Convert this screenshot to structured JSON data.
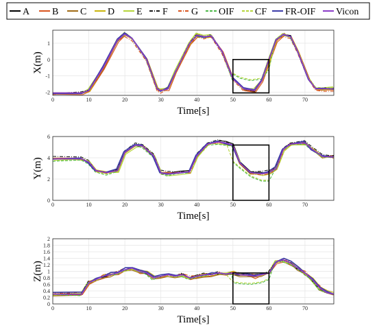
{
  "legend": {
    "position": "top",
    "items": [
      {
        "name": "A",
        "color": "#000000",
        "dash": "solid"
      },
      {
        "name": "B",
        "color": "#d9541e",
        "dash": "solid"
      },
      {
        "name": "C",
        "color": "#a06a14",
        "dash": "solid"
      },
      {
        "name": "D",
        "color": "#c9b40a",
        "dash": "solid"
      },
      {
        "name": "E",
        "color": "#b5d43a",
        "dash": "solid"
      },
      {
        "name": "F",
        "color": "#1a1a1a",
        "dash": "dashdot"
      },
      {
        "name": "G",
        "color": "#d9541e",
        "dash": "dashdot"
      },
      {
        "name": "OIF",
        "color": "#4db848",
        "dash": "dash"
      },
      {
        "name": "CF",
        "color": "#b5d43a",
        "dash": "dash"
      },
      {
        "name": "FR-OIF",
        "color": "#3c3ca8",
        "dash": "solid"
      },
      {
        "name": "Vicon",
        "color": "#8a3cc8",
        "dash": "solid"
      }
    ]
  },
  "chart_data": [
    {
      "type": "line",
      "id": "x",
      "xlabel": "Time[s]",
      "ylabel": "X(m)",
      "xlim": [
        0,
        78
      ],
      "ylim": [
        -2.2,
        1.8
      ],
      "xticks": [
        0,
        10,
        20,
        30,
        40,
        50,
        60,
        70
      ],
      "yticks": [
        -2,
        -1,
        0,
        1
      ],
      "grid": true,
      "highlight_box": {
        "x": [
          50,
          60
        ],
        "y": [
          -2.05,
          0
        ]
      },
      "series_reference": {
        "name": "Vicon",
        "x": [
          0,
          8,
          10,
          14,
          18,
          20,
          22,
          26,
          29,
          30,
          32,
          34,
          38,
          40,
          42,
          44,
          47,
          50,
          53,
          56,
          58,
          60,
          62,
          64,
          66,
          68,
          71,
          73,
          75,
          78
        ],
        "y": [
          -2.05,
          -2.05,
          -1.9,
          -0.5,
          1.2,
          1.55,
          1.3,
          0.0,
          -1.8,
          -1.9,
          -1.8,
          -0.8,
          1.0,
          1.5,
          1.4,
          1.45,
          0.5,
          -1.2,
          -1.8,
          -1.9,
          -1.3,
          0.0,
          1.2,
          1.55,
          1.4,
          0.5,
          -1.2,
          -1.8,
          -1.8,
          -1.8
        ]
      },
      "deviation_segment": {
        "names": [
          "OIF",
          "CF"
        ],
        "x": [
          50,
          52,
          55,
          58,
          60
        ],
        "y": [
          -0.9,
          -1.15,
          -1.3,
          -1.2,
          -0.6
        ]
      }
    },
    {
      "type": "line",
      "id": "y",
      "xlabel": "Time[s]",
      "ylabel": "Y(m)",
      "xlim": [
        0,
        78
      ],
      "ylim": [
        0,
        6
      ],
      "xticks": [
        0,
        10,
        20,
        30,
        40,
        50,
        60,
        70
      ],
      "yticks": [
        0,
        2,
        4,
        6
      ],
      "grid": true,
      "highlight_box": {
        "x": [
          50,
          60
        ],
        "y": [
          0,
          5.2
        ]
      },
      "series_reference": {
        "name": "Vicon",
        "x": [
          0,
          8,
          10,
          12,
          15,
          18,
          20,
          23,
          25,
          28,
          30,
          32,
          35,
          38,
          40,
          43,
          46,
          48,
          50,
          52,
          55,
          58,
          60,
          62,
          64,
          66,
          70,
          72,
          75,
          78
        ],
        "y": [
          3.9,
          3.9,
          3.6,
          2.8,
          2.6,
          2.8,
          4.5,
          5.2,
          5.1,
          4.2,
          2.6,
          2.5,
          2.6,
          2.7,
          4.2,
          5.3,
          5.5,
          5.4,
          5.2,
          3.5,
          2.6,
          2.5,
          2.6,
          3.0,
          4.8,
          5.3,
          5.4,
          4.8,
          4.1,
          4.1
        ]
      },
      "deviation_segment": {
        "names": [
          "OIF",
          "CF"
        ],
        "x": [
          50,
          52,
          55,
          58,
          60
        ],
        "y": [
          3.6,
          3.0,
          2.2,
          1.8,
          1.8
        ]
      }
    },
    {
      "type": "line",
      "id": "z",
      "xlabel": "Time[s]",
      "ylabel": "Z(m)",
      "xlim": [
        0,
        78
      ],
      "ylim": [
        0,
        2
      ],
      "xticks": [
        0,
        10,
        20,
        30,
        40,
        50,
        60,
        70
      ],
      "yticks": [
        0,
        0.2,
        0.4,
        0.6,
        0.8,
        1,
        1.2,
        1.4,
        1.6,
        1.8,
        2
      ],
      "grid": true,
      "highlight_box": {
        "x": [
          50,
          60
        ],
        "y": [
          0,
          0.95
        ]
      },
      "series_reference": {
        "name": "Vicon",
        "x": [
          0,
          8,
          10,
          12,
          14,
          16,
          18,
          20,
          22,
          24,
          26,
          28,
          30,
          32,
          34,
          36,
          38,
          40,
          42,
          44,
          46,
          48,
          50,
          52,
          54,
          56,
          58,
          60,
          62,
          64,
          66,
          68,
          70,
          72,
          74,
          76,
          78
        ],
        "y": [
          0.3,
          0.3,
          0.65,
          0.75,
          0.85,
          0.9,
          0.95,
          1.05,
          1.1,
          1.0,
          0.95,
          0.8,
          0.85,
          0.9,
          0.85,
          0.9,
          0.8,
          0.85,
          0.9,
          0.9,
          0.95,
          0.92,
          0.95,
          0.9,
          0.88,
          0.85,
          0.9,
          0.95,
          1.3,
          1.35,
          1.25,
          1.1,
          0.95,
          0.75,
          0.5,
          0.35,
          0.3
        ]
      },
      "deviation_segment": {
        "names": [
          "OIF",
          "CF"
        ],
        "x": [
          50,
          52,
          55,
          58,
          60
        ],
        "y": [
          0.65,
          0.62,
          0.6,
          0.65,
          0.75
        ]
      }
    }
  ]
}
